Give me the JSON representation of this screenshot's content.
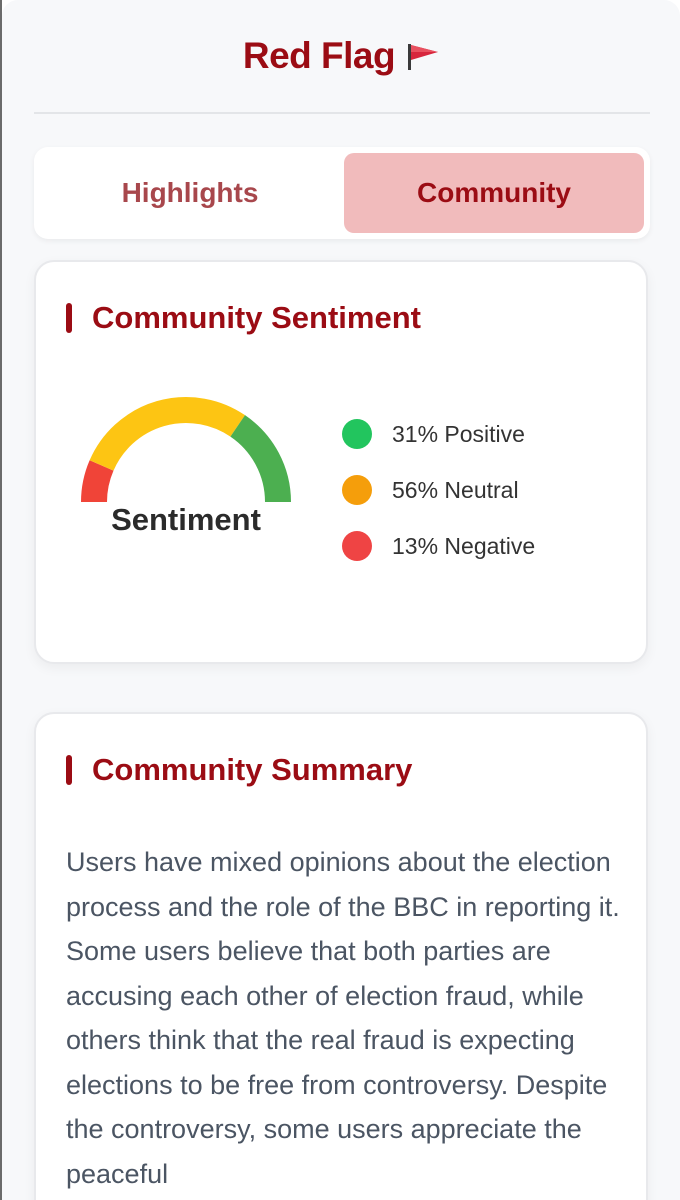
{
  "header": {
    "title": "Red Flag"
  },
  "tabs": [
    {
      "label": "Highlights",
      "active": false
    },
    {
      "label": "Community",
      "active": true
    }
  ],
  "sentiment": {
    "title": "Community Sentiment",
    "gauge_label": "Sentiment",
    "legend": [
      {
        "text": "31% Positive",
        "color": "#22c55e",
        "percent": 31
      },
      {
        "text": "56% Neutral",
        "color": "#f59e0b",
        "percent": 56
      },
      {
        "text": "13% Negative",
        "color": "#ef4444",
        "percent": 13
      }
    ],
    "gauge_colors": {
      "negative": "#f04438",
      "neutral": "#fdc513",
      "positive": "#4caf50"
    }
  },
  "summary": {
    "title": "Community Summary",
    "text": "Users have mixed opinions about the election process and the role of the BBC in reporting it. Some users believe that both parties are accusing each other of election fraud, while others think that the real fraud is expecting elections to be free from controversy. Despite the controversy, some users appreciate the peaceful"
  },
  "colors": {
    "brand": "#9b0c14",
    "active_tab_bg": "#f1bbbc"
  }
}
